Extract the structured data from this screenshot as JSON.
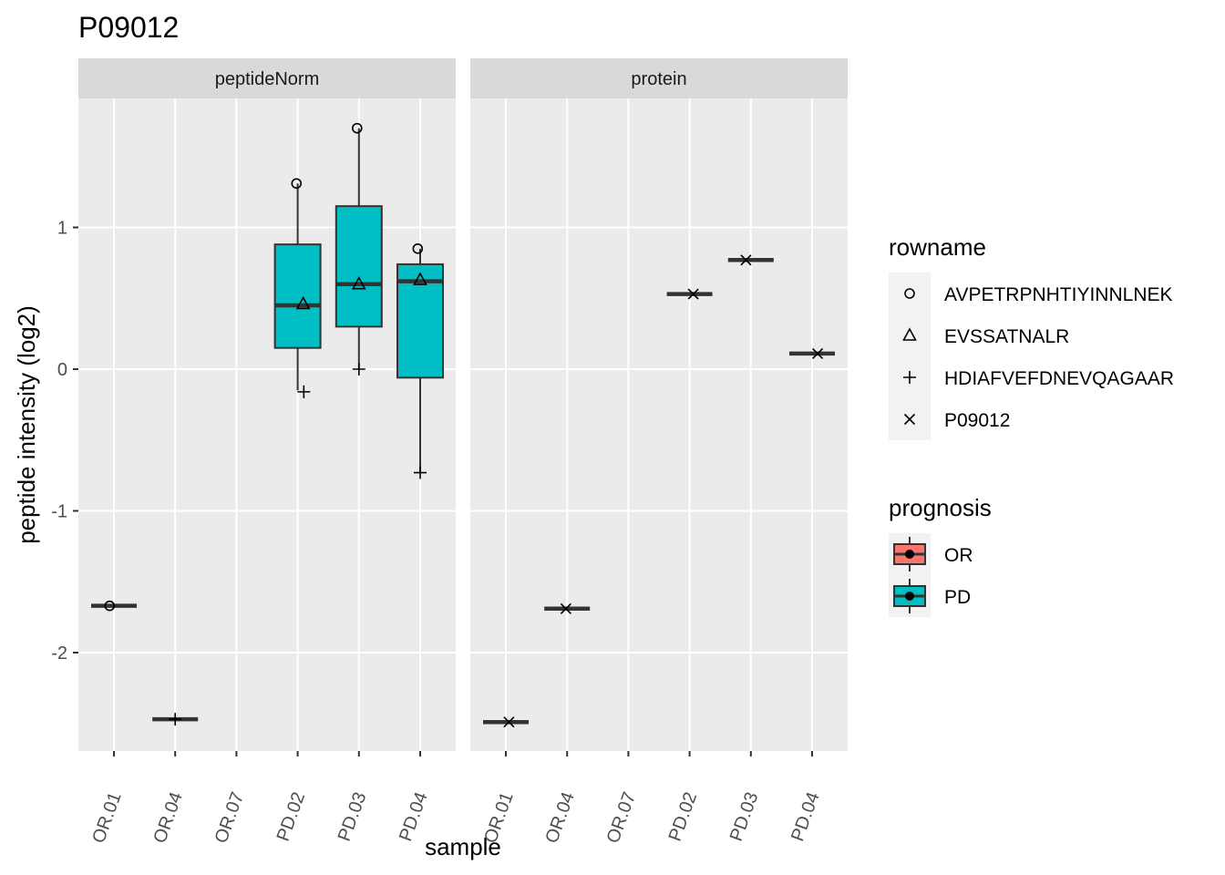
{
  "chart_data": {
    "type": "boxplot",
    "title": "P09012",
    "xlabel": "sample",
    "ylabel": "peptide intensity (log2)",
    "ylim": [
      -2.6,
      1.95
    ],
    "y_ticks": [
      -2,
      -1,
      0,
      1
    ],
    "y_tick_labels": [
      "-2",
      "-1",
      "0",
      "1"
    ],
    "categories": [
      "OR.01",
      "OR.04",
      "OR.07",
      "PD.02",
      "PD.03",
      "PD.04"
    ],
    "grid": true,
    "fill_colors": {
      "OR": "#F8766D",
      "PD": "#00BFC4"
    },
    "panels": [
      {
        "name": "peptideNorm",
        "boxes": [
          {
            "sample": "OR.01",
            "prognosis": "OR",
            "min": -1.67,
            "q1": -1.67,
            "median": -1.67,
            "q3": -1.67,
            "max": -1.67
          },
          {
            "sample": "OR.04",
            "prognosis": "OR",
            "min": -2.47,
            "q1": -2.47,
            "median": -2.47,
            "q3": -2.47,
            "max": -2.47
          },
          {
            "sample": "PD.02",
            "prognosis": "PD",
            "min": -0.15,
            "q1": 0.15,
            "median": 0.45,
            "q3": 0.88,
            "max": 1.31
          },
          {
            "sample": "PD.03",
            "prognosis": "PD",
            "min": 0.0,
            "q1": 0.3,
            "median": 0.6,
            "q3": 1.15,
            "max": 1.7
          },
          {
            "sample": "PD.04",
            "prognosis": "PD",
            "min": -0.73,
            "q1": -0.06,
            "median": 0.62,
            "q3": 0.74,
            "max": 0.85
          }
        ],
        "points": [
          {
            "sample": "OR.01",
            "rowname": "AVPETRPNHTIYINNLNEK",
            "y": -1.67,
            "dx": -0.07
          },
          {
            "sample": "OR.04",
            "rowname": "HDIAFVEFDNEVQAGAAR",
            "y": -2.47,
            "dx": 0.0
          },
          {
            "sample": "PD.02",
            "rowname": "AVPETRPNHTIYINNLNEK",
            "y": 1.31,
            "dx": -0.02
          },
          {
            "sample": "PD.02",
            "rowname": "EVSSATNALR",
            "y": 0.46,
            "dx": 0.09
          },
          {
            "sample": "PD.02",
            "rowname": "HDIAFVEFDNEVQAGAAR",
            "y": -0.16,
            "dx": 0.1
          },
          {
            "sample": "PD.03",
            "rowname": "AVPETRPNHTIYINNLNEK",
            "y": 1.7,
            "dx": -0.03
          },
          {
            "sample": "PD.03",
            "rowname": "EVSSATNALR",
            "y": 0.6,
            "dx": 0.0
          },
          {
            "sample": "PD.03",
            "rowname": "HDIAFVEFDNEVQAGAAR",
            "y": 0.0,
            "dx": 0.0
          },
          {
            "sample": "PD.04",
            "rowname": "AVPETRPNHTIYINNLNEK",
            "y": 0.85,
            "dx": -0.04
          },
          {
            "sample": "PD.04",
            "rowname": "EVSSATNALR",
            "y": 0.63,
            "dx": 0.0
          },
          {
            "sample": "PD.04",
            "rowname": "HDIAFVEFDNEVQAGAAR",
            "y": -0.73,
            "dx": 0.0
          }
        ]
      },
      {
        "name": "protein",
        "boxes": [
          {
            "sample": "OR.01",
            "prognosis": "OR",
            "min": -2.49,
            "q1": -2.49,
            "median": -2.49,
            "q3": -2.49,
            "max": -2.49
          },
          {
            "sample": "OR.04",
            "prognosis": "OR",
            "min": -1.69,
            "q1": -1.69,
            "median": -1.69,
            "q3": -1.69,
            "max": -1.69
          },
          {
            "sample": "PD.02",
            "prognosis": "PD",
            "min": 0.53,
            "q1": 0.53,
            "median": 0.53,
            "q3": 0.53,
            "max": 0.53
          },
          {
            "sample": "PD.03",
            "prognosis": "PD",
            "min": 0.77,
            "q1": 0.77,
            "median": 0.77,
            "q3": 0.77,
            "max": 0.77
          },
          {
            "sample": "PD.04",
            "prognosis": "PD",
            "min": 0.11,
            "q1": 0.11,
            "median": 0.11,
            "q3": 0.11,
            "max": 0.11
          }
        ],
        "points": [
          {
            "sample": "OR.01",
            "rowname": "P09012",
            "y": -2.49,
            "dx": 0.05
          },
          {
            "sample": "OR.04",
            "rowname": "P09012",
            "y": -1.69,
            "dx": -0.02
          },
          {
            "sample": "PD.02",
            "rowname": "P09012",
            "y": 0.53,
            "dx": 0.06
          },
          {
            "sample": "PD.03",
            "rowname": "P09012",
            "y": 0.77,
            "dx": -0.08
          },
          {
            "sample": "PD.04",
            "rowname": "P09012",
            "y": 0.11,
            "dx": 0.09
          }
        ]
      }
    ],
    "legends": [
      {
        "title": "rowname",
        "entries": [
          {
            "label": "AVPETRPNHTIYINNLNEK",
            "shape": "circle"
          },
          {
            "label": "EVSSATNALR",
            "shape": "triangle"
          },
          {
            "label": "HDIAFVEFDNEVQAGAAR",
            "shape": "plus"
          },
          {
            "label": "P09012",
            "shape": "cross"
          }
        ]
      },
      {
        "title": "prognosis",
        "entries": [
          {
            "label": "OR",
            "color": "#F8766D"
          },
          {
            "label": "PD",
            "color": "#00BFC4"
          }
        ]
      }
    ],
    "legend_position": "right"
  }
}
